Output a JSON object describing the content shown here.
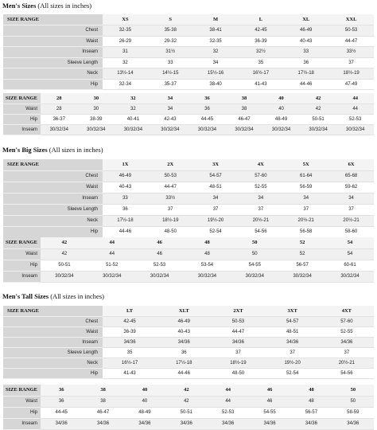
{
  "sections": [
    {
      "title": "Men's Sizes",
      "subtitle": " (All sizes in inches)",
      "main": {
        "header": [
          "SIZE RANGE",
          "XS",
          "S",
          "M",
          "L",
          "XL",
          "XXL"
        ],
        "rows": [
          [
            "Chest",
            "32-35",
            "35-38",
            "38-41",
            "42-45",
            "46-49",
            "50-53"
          ],
          [
            "Waist",
            "26-29",
            "29-32",
            "32-35",
            "36-39",
            "40-43",
            "44-47"
          ],
          [
            "Inseam",
            "31",
            "31½",
            "32",
            "32½",
            "33",
            "33½"
          ],
          [
            "Sleeve Length",
            "32",
            "33",
            "34",
            "35",
            "36",
            "37"
          ],
          [
            "Neck",
            "13½-14",
            "14½-15",
            "15½-16",
            "16½-17",
            "17½-18",
            "18½-19"
          ],
          [
            "Hip",
            "32-34",
            "35-37",
            "38-40",
            "41-43",
            "44-46",
            "47-49"
          ]
        ]
      },
      "sub": {
        "header": [
          "SIZE RANGE",
          "28",
          "30",
          "32",
          "34",
          "36",
          "38",
          "40",
          "42",
          "44"
        ],
        "rows": [
          [
            "Waist",
            "28",
            "30",
            "32",
            "34",
            "36",
            "38",
            "40",
            "42",
            "44"
          ],
          [
            "Hip",
            "36-37",
            "38-39",
            "40-41",
            "42-43",
            "44-45",
            "46-47",
            "48-49",
            "50-51",
            "52-53"
          ],
          [
            "Inseam",
            "30/32/34",
            "30/32/34",
            "30/32/34",
            "30/32/34",
            "30/32/34",
            "30/32/34",
            "30/32/34",
            "30/32/34",
            "30/32/34"
          ]
        ]
      }
    },
    {
      "title": "Men's Big Sizes",
      "subtitle": " (All sizes in inches)",
      "main": {
        "header": [
          "SIZE RANGE",
          "1X",
          "2X",
          "3X",
          "4X",
          "5X",
          "6X"
        ],
        "rows": [
          [
            "Chest",
            "46-49",
            "50-53",
            "54-57",
            "57-60",
            "61-64",
            "65-68"
          ],
          [
            "Waist",
            "40-43",
            "44-47",
            "48-51",
            "52-55",
            "56-59",
            "59-62"
          ],
          [
            "Inseam",
            "33",
            "33½",
            "34",
            "34",
            "34",
            "34"
          ],
          [
            "Sleeve Length",
            "36",
            "37",
            "37",
            "37",
            "37",
            "37"
          ],
          [
            "Neck",
            "17½-18",
            "18½-19",
            "19½-20",
            "20½-21",
            "20½-21",
            "20½-21"
          ],
          [
            "Hip",
            "44-46",
            "48-50",
            "52-54",
            "54-56",
            "56-58",
            "58-60"
          ]
        ]
      },
      "sub": {
        "header": [
          "SIZE RANGE",
          "42",
          "44",
          "46",
          "48",
          "50",
          "52",
          "54"
        ],
        "rows": [
          [
            "Waist",
            "42",
            "44",
            "46",
            "48",
            "50",
            "52",
            "54"
          ],
          [
            "Hip",
            "50-51",
            "51-52",
            "52-53",
            "53-54",
            "54-55",
            "56-57",
            "60-61"
          ],
          [
            "Inseam",
            "30/32/34",
            "30/32/34",
            "30/32/34",
            "30/32/34",
            "30/32/34",
            "30/32/34",
            "30/32/34"
          ]
        ]
      }
    },
    {
      "title": "Men's Tall Sizes",
      "subtitle": " (All sizes in inches)",
      "main": {
        "header": [
          "SIZE RANGE",
          "LT",
          "XLT",
          "2XT",
          "3XT",
          "4XT"
        ],
        "rows": [
          [
            "Chest",
            "42-45",
            "46-49",
            "50-53",
            "54-57",
            "57-60"
          ],
          [
            "Waist",
            "36-39",
            "40-43",
            "44-47",
            "48-51",
            "52-55"
          ],
          [
            "Inseam",
            "34/36",
            "34/36",
            "34/36",
            "34/36",
            "34/36"
          ],
          [
            "Sleeve Length",
            "35",
            "36",
            "37",
            "37",
            "37"
          ],
          [
            "Neck",
            "16½-17",
            "17½-18",
            "18½-19",
            "19½-20",
            "20½-21"
          ],
          [
            "Hip",
            "41-43",
            "44-46",
            "48-50",
            "52-54",
            "54-56"
          ]
        ]
      },
      "sub": {
        "header": [
          "SIZE RANGE",
          "36",
          "38",
          "40",
          "42",
          "44",
          "46",
          "48",
          "50"
        ],
        "rows": [
          [
            "Waist",
            "36",
            "38",
            "40",
            "42",
            "44",
            "46",
            "48",
            "50"
          ],
          [
            "Hip",
            "44-45",
            "46-47",
            "48-49",
            "50-51",
            "52-53",
            "54-55",
            "56-57",
            "58-59"
          ],
          [
            "Inseam",
            "34/36",
            "34/36",
            "34/36",
            "34/36",
            "34/36",
            "34/36",
            "34/36",
            "34/36"
          ]
        ]
      }
    }
  ]
}
